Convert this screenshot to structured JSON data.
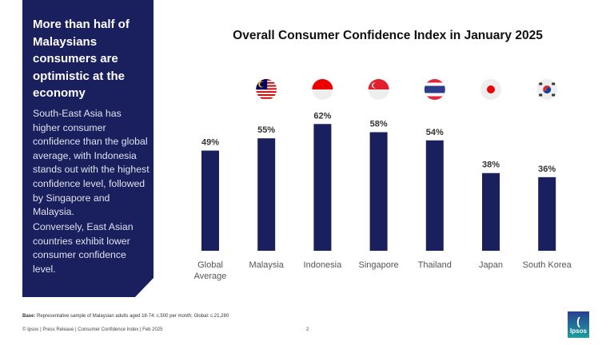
{
  "sidebar": {
    "headline": "More than half of Malaysians consumers are optimistic at the economy",
    "paragraph1": "South-East Asia has higher consumer confidence than the global average, with Indonesia stands out with the highest confidence level, followed by Singapore and Malaysia.",
    "paragraph2": "Conversely, East Asian countries exhibit lower consumer confidence level."
  },
  "chart_data": {
    "type": "bar",
    "title": "Overall Consumer Confidence Index in January 2025",
    "categories": [
      "Global Average",
      "Malaysia",
      "Indonesia",
      "Singapore",
      "Thailand",
      "Japan",
      "South Korea"
    ],
    "values": [
      49,
      55,
      62,
      58,
      54,
      38,
      36
    ],
    "value_labels": [
      "49%",
      "55%",
      "62%",
      "58%",
      "54%",
      "38%",
      "36%"
    ],
    "flags": [
      null,
      "malaysia-flag",
      "indonesia-flag",
      "singapore-flag",
      "thailand-flag",
      "japan-flag",
      "south-korea-flag"
    ],
    "bar_color": "#1a1f5e",
    "ylim": [
      0,
      100
    ],
    "grid": false
  },
  "footer": {
    "base_label": "Base:",
    "base_text": "Representative sample of Malaysian adults aged 18-74: c.500 per month; Global: c.21,280",
    "credit": "© Ipsos | Press Release | Consumer Confidence Index | Feb 2025",
    "page_number": "2",
    "logo_text": "Ipsos"
  }
}
